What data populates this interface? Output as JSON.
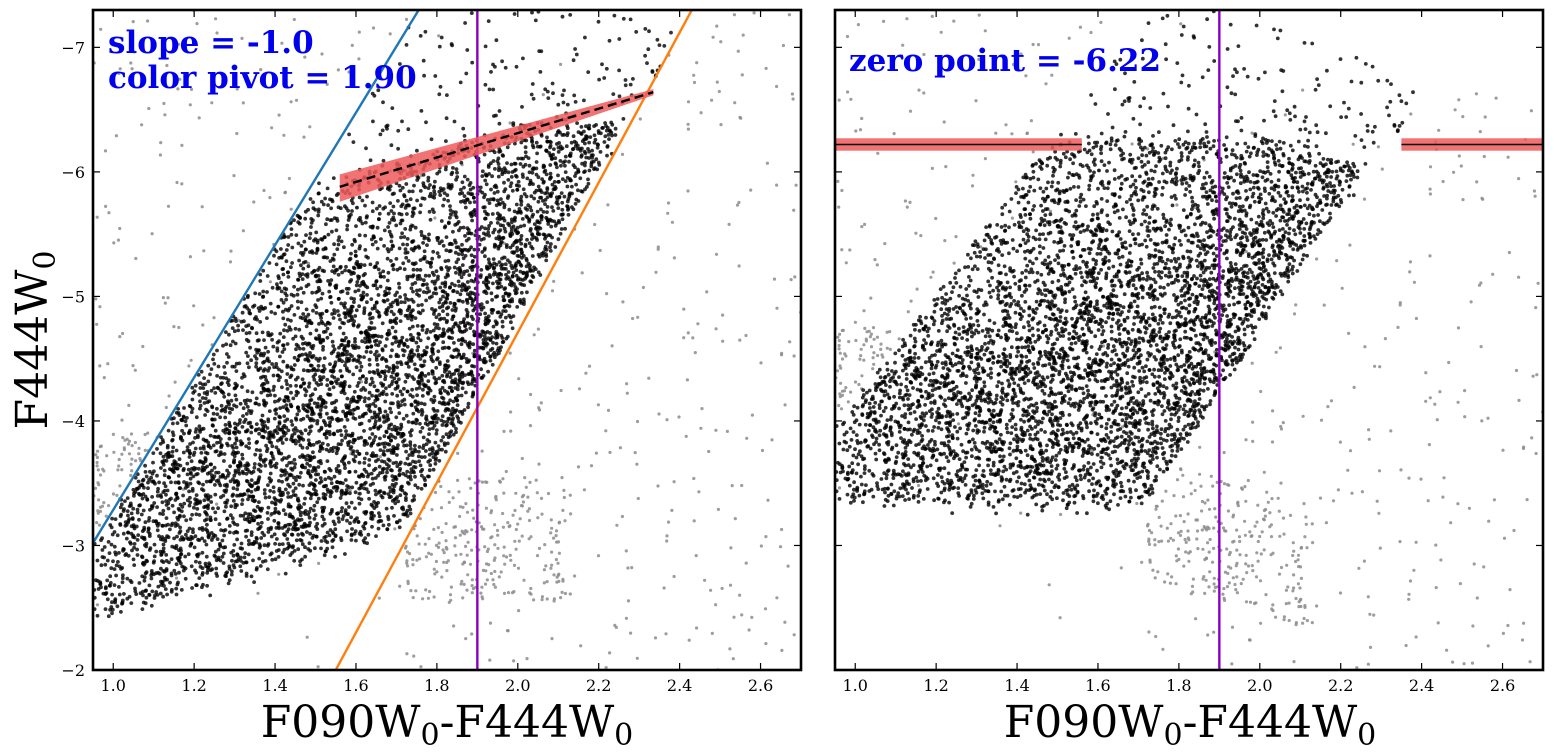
{
  "colors": {
    "background": "#ffffff",
    "rgb_points": "#000000",
    "other_points": "#8c8c8c",
    "blue_line": "#1f77b4",
    "orange_line": "#ff7f0e",
    "pivot_line": "#8a00c2",
    "fit_band": "#f05a5a",
    "fit_line": "#000000",
    "annotation": "#0000ee"
  },
  "chart_data": [
    {
      "type": "scatter",
      "panel": "left",
      "xlabel": {
        "main1": "F090W",
        "sub1": "0",
        "main2": "-F444W",
        "sub2": "0"
      },
      "ylabel": {
        "main": "F444W",
        "sub": "0"
      },
      "xlim": [
        0.95,
        2.7
      ],
      "ylim": [
        -2.0,
        -7.3
      ],
      "y_inverted": true,
      "xticks": [
        "1.0",
        "1.2",
        "1.4",
        "1.6",
        "1.8",
        "2.0",
        "2.2",
        "2.4",
        "2.6"
      ],
      "yticks": [
        "−7",
        "−6",
        "−5",
        "−4",
        "−3",
        "−2"
      ],
      "annotations": [
        "slope = -1.0",
        "color pivot = 1.90"
      ],
      "pivot_color": 1.9,
      "slope": -1.0,
      "selection_lines": [
        {
          "name": "blue",
          "x": [
            0.95,
            1.755
          ],
          "y": [
            -3.02,
            -7.3
          ]
        },
        {
          "name": "orange",
          "x": [
            1.55,
            2.43
          ],
          "y": [
            -2.0,
            -7.3
          ]
        }
      ],
      "fit": {
        "x": [
          1.56,
          2.335
        ],
        "y": [
          -5.88,
          -6.64
        ],
        "band": 0.1
      },
      "stars": {
        "region": "sloped",
        "tip_mag": -6.22
      }
    },
    {
      "type": "scatter",
      "panel": "right",
      "xlabel": {
        "main1": "F090W",
        "sub1": "0",
        "main2": "-F444W",
        "sub2": "0"
      },
      "xlim": [
        0.95,
        2.7
      ],
      "ylim": [
        -2.0,
        -7.3
      ],
      "y_inverted": true,
      "xticks": [
        "1.0",
        "1.2",
        "1.4",
        "1.6",
        "1.8",
        "2.0",
        "2.2",
        "2.4",
        "2.6"
      ],
      "annotations": [
        "zero point = -6.22"
      ],
      "pivot_color": 1.9,
      "zero_point": -6.22,
      "fit_segments": [
        {
          "x": [
            0.95,
            1.56
          ],
          "y": -6.22
        },
        {
          "x": [
            2.35,
            2.7
          ],
          "y": -6.22
        }
      ],
      "band": 0.05,
      "stars": {
        "region": "rectified",
        "tip_mag": -6.22
      }
    }
  ]
}
